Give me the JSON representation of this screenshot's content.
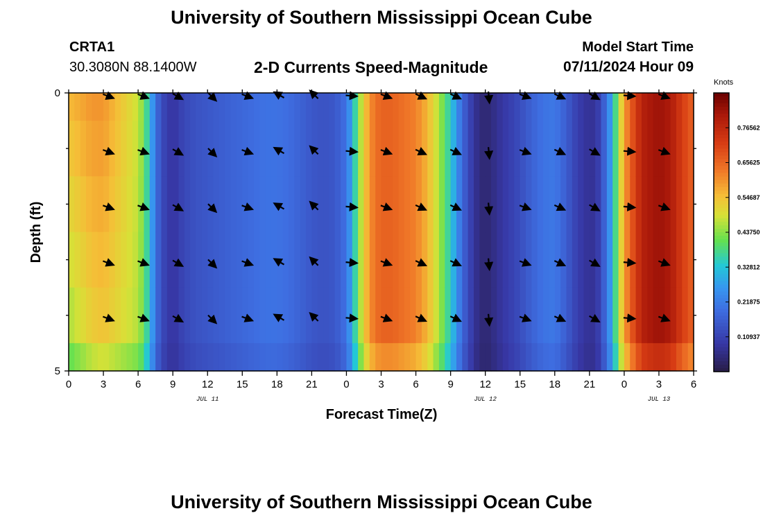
{
  "header": {
    "title": "University of Southern Mississippi Ocean Cube",
    "station": "CRTA1",
    "coords": "30.3080N  88.1400W",
    "subtitle": "2-D Currents Speed-Magnitude",
    "start_label": "Model Start Time",
    "start_value": "07/11/2024 Hour 09",
    "bottom_title": "University of Southern Mississippi Ocean Cube"
  },
  "chart_data": {
    "type": "heatmap",
    "title": "2-D Currents Speed-Magnitude",
    "xlabel": "Forecast Time(Z)",
    "ylabel": "Depth (ft)",
    "colorbar_label": "Knots",
    "ylim": [
      0,
      5
    ],
    "xlim_hours": [
      0,
      54
    ],
    "x_tick_hours": [
      0,
      3,
      6,
      9,
      12,
      15,
      18,
      21,
      24,
      27,
      30,
      33,
      36,
      39,
      42,
      45,
      48,
      51,
      54
    ],
    "x_tick_labels": [
      "0",
      "3",
      "6",
      "9",
      "12",
      "15",
      "18",
      "21",
      "0",
      "3",
      "6",
      "9",
      "12",
      "15",
      "18",
      "21",
      "0",
      "3",
      "6"
    ],
    "y_tick_labels": [
      {
        "depth": 0,
        "label": "0"
      },
      {
        "depth": 5,
        "label": "5"
      }
    ],
    "y_minor_ticks": [
      1,
      2,
      3,
      4
    ],
    "dates": [
      {
        "hour": 12,
        "label": "JUL 11"
      },
      {
        "hour": 36,
        "label": "JUL 12"
      },
      {
        "hour": 51,
        "label": "JUL 13"
      }
    ],
    "colorbar_range": [
      0.0,
      0.875
    ],
    "colorbar_ticks": [
      "0.10937",
      "0.21875",
      "0.32812",
      "0.43750",
      "0.54687",
      "0.65625",
      "0.76562"
    ],
    "colorbar_tick_values": [
      0.10937,
      0.21875,
      0.32812,
      0.4375,
      0.54687,
      0.65625,
      0.76562
    ],
    "speed_profile_hours": [
      0,
      1,
      2,
      3,
      4,
      5,
      6,
      6.5,
      7,
      7.5,
      8,
      8.5,
      9,
      10,
      11,
      12,
      13,
      14,
      15,
      16,
      17,
      18,
      19,
      20,
      21,
      22,
      23,
      24,
      24.5,
      25,
      25.5,
      26,
      26.5,
      27,
      28,
      29,
      30,
      31,
      32,
      33,
      33.5,
      34,
      35,
      35.5,
      36,
      36.5,
      37,
      38,
      39,
      40,
      41,
      42,
      43,
      44,
      45,
      45.5,
      46,
      47,
      47.5,
      48,
      48.5,
      49,
      49.5,
      50,
      51,
      52,
      53,
      54
    ],
    "speed_profile_knots": [
      0.56,
      0.58,
      0.6,
      0.6,
      0.56,
      0.52,
      0.48,
      0.42,
      0.32,
      0.2,
      0.13,
      0.1,
      0.08,
      0.12,
      0.14,
      0.15,
      0.16,
      0.17,
      0.18,
      0.19,
      0.2,
      0.2,
      0.19,
      0.17,
      0.15,
      0.14,
      0.15,
      0.2,
      0.3,
      0.42,
      0.52,
      0.6,
      0.64,
      0.66,
      0.66,
      0.64,
      0.62,
      0.56,
      0.46,
      0.34,
      0.26,
      0.18,
      0.08,
      0.05,
      0.04,
      0.05,
      0.07,
      0.1,
      0.13,
      0.17,
      0.2,
      0.21,
      0.16,
      0.1,
      0.07,
      0.08,
      0.12,
      0.3,
      0.46,
      0.58,
      0.66,
      0.72,
      0.78,
      0.8,
      0.82,
      0.8,
      0.72,
      0.66
    ],
    "depth_variation": "currents strongest near surface in first 7 hours, nearly uniform with depth elsewhere; bottom layer slightly weaker",
    "vector_depths_ft": [
      0,
      1,
      2,
      3,
      4
    ],
    "vector_hours": [
      3,
      6,
      9,
      12,
      15,
      18,
      21,
      24,
      27,
      30,
      33,
      36,
      39,
      42,
      45,
      48,
      51
    ],
    "vector_direction_deg": [
      110,
      110,
      120,
      135,
      110,
      300,
      315,
      95,
      110,
      115,
      115,
      175,
      110,
      115,
      120,
      95,
      110
    ]
  }
}
